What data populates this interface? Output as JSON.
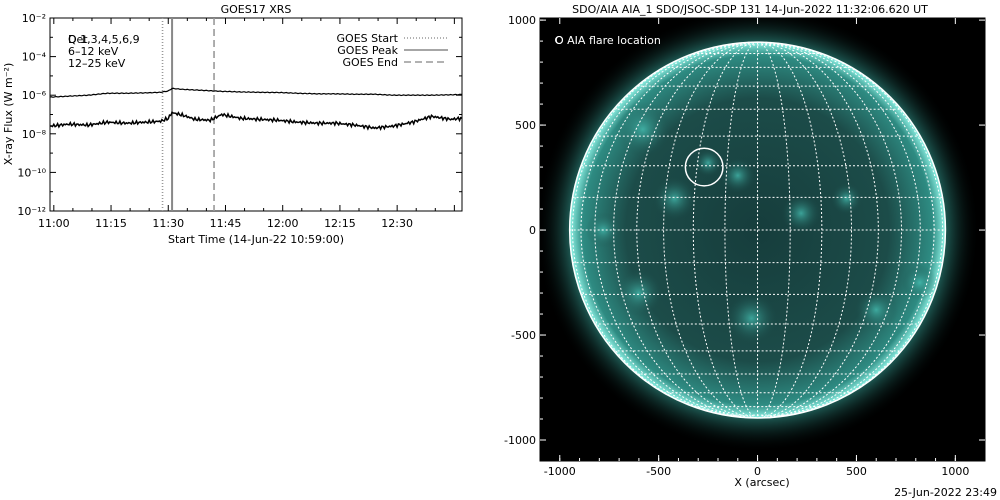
{
  "colors": {
    "disk": "#1f6f6a",
    "disk_edge": "#8ff3e6",
    "legend_magenta": "#cc22cc",
    "legend_green": "#22cc22",
    "background": "#000000",
    "grid": "#ffffff"
  },
  "chart_data": [
    {
      "type": "line",
      "title": "GOES17 XRS",
      "xlabel": "Start Time (14-Jun-22 10:59:00)",
      "ylabel": "X-ray Flux (W m⁻²)",
      "log_y": true,
      "ylim_exp": [
        -12,
        -2
      ],
      "xlim_min": [
        0,
        108
      ],
      "y_ticks": [
        "10⁻¹²",
        "10⁻¹⁰",
        "10⁻⁸",
        "10⁻⁶",
        "10⁻⁴",
        "10⁻²"
      ],
      "y_tick_exp": [
        -12,
        -10,
        -8,
        -6,
        -4,
        -2
      ],
      "x_ticks": [
        "11:00",
        "11:15",
        "11:30",
        "11:45",
        "12:00",
        "12:15",
        "12:30"
      ],
      "x_tick_min": [
        1,
        16,
        31,
        46,
        61,
        76,
        91
      ],
      "corner_label_overprint": [
        "Det",
        "Q 1,3,4,5,6,9"
      ],
      "legend_left": [
        "6–12 keV",
        "12–25 keV"
      ],
      "events": [
        {
          "name": "GOES Start",
          "minute": 29.5,
          "style": "dotted"
        },
        {
          "name": "GOES Peak",
          "minute": 32.0,
          "style": "solid"
        },
        {
          "name": "GOES End",
          "minute": 43.0,
          "style": "dashed"
        }
      ],
      "series": [
        {
          "minutes": [
            0,
            5,
            10,
            15,
            20,
            25,
            29,
            31,
            32,
            35,
            40,
            45,
            50,
            55,
            60,
            65,
            70,
            75,
            80,
            85,
            90,
            95,
            100,
            105,
            108
          ],
          "log_values": [
            -6.1,
            -6.05,
            -6.0,
            -5.9,
            -5.9,
            -5.88,
            -5.85,
            -5.78,
            -5.65,
            -5.7,
            -5.75,
            -5.8,
            -5.83,
            -5.85,
            -5.86,
            -5.9,
            -5.93,
            -5.93,
            -5.95,
            -5.95,
            -6.0,
            -6.0,
            -6.0,
            -5.98,
            -5.96
          ]
        },
        {
          "minutes": [
            0,
            5,
            10,
            15,
            20,
            25,
            29,
            31,
            32,
            35,
            38,
            42,
            45,
            50,
            55,
            60,
            65,
            70,
            75,
            80,
            85,
            90,
            95,
            100,
            105,
            108
          ],
          "log_values": [
            -7.6,
            -7.5,
            -7.55,
            -7.4,
            -7.45,
            -7.4,
            -7.35,
            -7.2,
            -6.9,
            -7.05,
            -7.25,
            -7.3,
            -7.0,
            -7.2,
            -7.25,
            -7.3,
            -7.4,
            -7.45,
            -7.45,
            -7.55,
            -7.7,
            -7.6,
            -7.4,
            -7.1,
            -7.25,
            -7.2
          ]
        }
      ]
    },
    {
      "type": "image-map",
      "title": "SDO/AIA AIA_1 SDO/JSOC-SDP 131 14-Jun-2022 11:32:06.620 UT",
      "xlabel": "X (arcsec)",
      "ylabel": "",
      "xlim": [
        -1100,
        1150
      ],
      "ylim": [
        -1100,
        1010
      ],
      "x_ticks": [
        -1000,
        -500,
        0,
        500,
        1000
      ],
      "y_ticks": [
        -1000,
        -500,
        0,
        500,
        1000
      ],
      "disk_radius_arcsec": 950,
      "legend": "O AIA flare location",
      "flare_location": {
        "x": -270,
        "y": 300,
        "radius": 95
      },
      "footer_date": "25-Jun-2022 23:49"
    }
  ]
}
